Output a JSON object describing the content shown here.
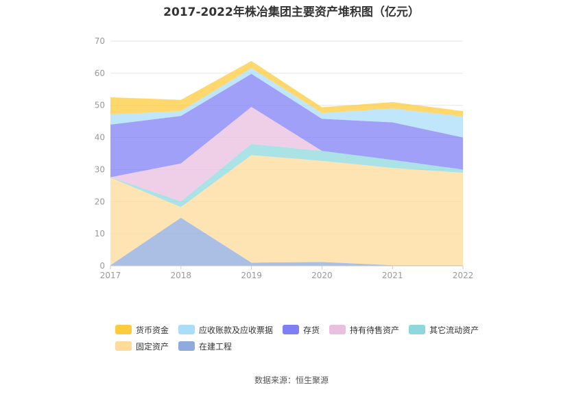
{
  "chart_data": {
    "type": "area",
    "stacked": true,
    "title": "2017-2022年株冶集团主要资产堆积图（亿元）",
    "categories": [
      "2017",
      "2018",
      "2019",
      "2020",
      "2021",
      "2022"
    ],
    "ylim": [
      0,
      70
    ],
    "yticks": [
      0,
      10,
      20,
      30,
      40,
      50,
      60,
      70
    ],
    "grid": true,
    "legend_position": "bottom",
    "series": [
      {
        "name": "在建工程",
        "color": "#8faadc",
        "values": [
          0.2,
          15.0,
          1.0,
          1.2,
          0.2,
          0.2
        ]
      },
      {
        "name": "固定资产",
        "color": "#ffdb9a",
        "values": [
          27.3,
          3.3,
          33.5,
          31.5,
          30.3,
          28.8
        ]
      },
      {
        "name": "其它流动资产",
        "color": "#8ed8dd",
        "values": [
          0.1,
          1.8,
          3.5,
          3.1,
          2.5,
          1.0
        ]
      },
      {
        "name": "持有待售资产",
        "color": "#eabfe0",
        "values": [
          0.0,
          11.8,
          11.5,
          0.0,
          0.0,
          0.0
        ]
      },
      {
        "name": "存货",
        "color": "#8080f5",
        "values": [
          16.4,
          14.8,
          10.3,
          10.0,
          11.7,
          10.0
        ]
      },
      {
        "name": "应收账款及应收票据",
        "color": "#a9def9",
        "values": [
          3.2,
          1.5,
          1.8,
          1.8,
          4.3,
          6.5
        ]
      },
      {
        "name": "货币资金",
        "color": "#fecb3c",
        "values": [
          5.3,
          3.5,
          2.2,
          1.8,
          2.0,
          1.7
        ]
      }
    ],
    "legend_order": [
      "货币资金",
      "应收账款及应收票据",
      "存货",
      "持有待售资产",
      "其它流动资产",
      "固定资产",
      "在建工程"
    ]
  },
  "source_text": "数据来源：恒生聚源"
}
